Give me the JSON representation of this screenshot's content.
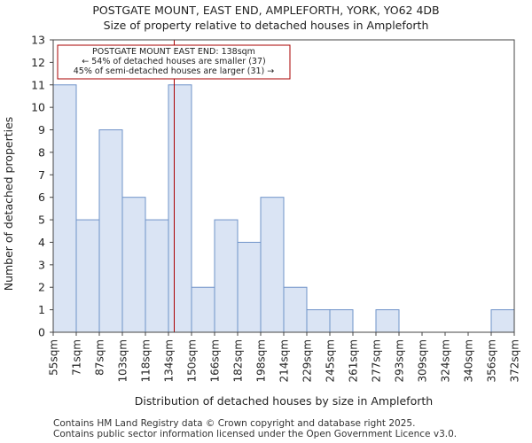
{
  "title": "POSTGATE MOUNT, EAST END, AMPLEFORTH, YORK, YO62 4DB",
  "subtitle": "Size of property relative to detached houses in Ampleforth",
  "footer": [
    "Contains HM Land Registry data © Crown copyright and database right 2025.",
    "Contains public sector information licensed under the Open Government Licence v3.0."
  ],
  "chart_data": {
    "type": "bar",
    "xlabel": "Distribution of detached houses by size in Ampleforth",
    "ylabel": "Number of detached properties",
    "ylim": [
      0,
      13
    ],
    "yticks": [
      0,
      1,
      2,
      3,
      4,
      5,
      6,
      7,
      8,
      9,
      10,
      11,
      12,
      13
    ],
    "bin_labels": [
      "55sqm",
      "71sqm",
      "87sqm",
      "103sqm",
      "118sqm",
      "134sqm",
      "150sqm",
      "166sqm",
      "182sqm",
      "198sqm",
      "214sqm",
      "229sqm",
      "245sqm",
      "261sqm",
      "277sqm",
      "293sqm",
      "309sqm",
      "324sqm",
      "340sqm",
      "356sqm",
      "372sqm"
    ],
    "values": [
      11,
      5,
      9,
      6,
      5,
      11,
      2,
      5,
      4,
      6,
      2,
      1,
      1,
      0,
      1,
      0,
      0,
      0,
      0,
      1
    ],
    "marker": {
      "value": 138,
      "bin_low": 134,
      "bin_high": 150,
      "bin_index": 5,
      "color": "#aa0000",
      "annotation": [
        "POSTGATE MOUNT EAST END: 138sqm",
        "← 54% of detached houses are smaller (37)",
        "45% of semi-detached houses are larger (31) →"
      ]
    },
    "bar_fill": "#dae4f4",
    "bar_edge": "#6f93c9",
    "grid": false
  }
}
